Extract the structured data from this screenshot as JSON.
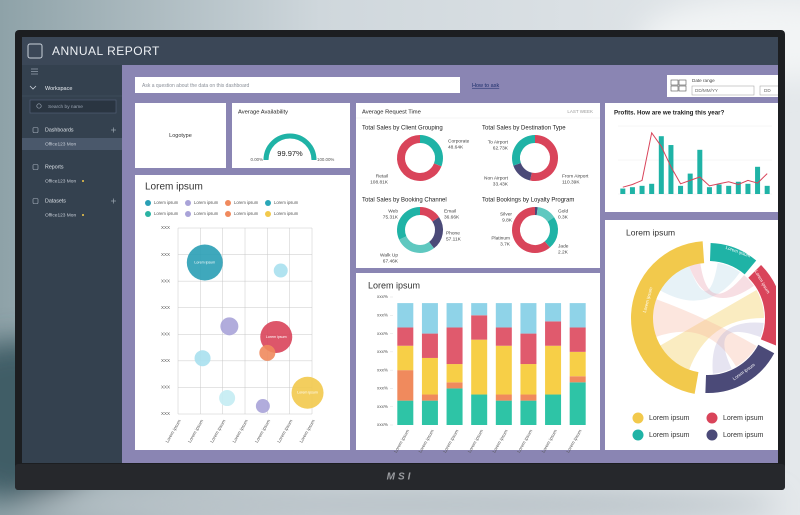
{
  "monitor": {
    "brand": "MSI"
  },
  "window": {
    "title": "ANNUAL REPORT"
  },
  "sidebar": {
    "workspace": "Workspace",
    "search": "Search by name",
    "sections": [
      {
        "label": "Dashboards",
        "items": [
          "Office123 Mon"
        ]
      },
      {
        "label": "Reports",
        "items": [
          "Office123 Mon"
        ]
      },
      {
        "label": "Datasets",
        "items": [
          "Office123 Mon"
        ]
      }
    ]
  },
  "toolbar": {
    "question": "Ask a question about the data on this dashboard",
    "help": "How to ask",
    "date_range": {
      "label": "Date range",
      "from": "DD/MM/YY",
      "to": "DD"
    }
  },
  "logo_card": {
    "label": "Logotype"
  },
  "availability": {
    "title": "Average Availability",
    "value": 99.97,
    "value_label": "99.97%",
    "min": {
      "value": 0,
      "label": "0.00%"
    },
    "max": {
      "value": 100,
      "label": "100.00%"
    },
    "color": "#1fb3a6"
  },
  "request_time": {
    "title": "Average Request Time",
    "period": "LAST WEEK",
    "donuts": [
      {
        "title": "Total Sales by Client Grouping",
        "segments": [
          {
            "name": "Corporate",
            "value": 48640,
            "label": "48.64K",
            "color": "#1fb3a6"
          },
          {
            "name": "Retail",
            "value": 108810,
            "label": "108.81K",
            "color": "#d9445a"
          }
        ]
      },
      {
        "title": "Total Sales by Destination Type",
        "segments": [
          {
            "name": "From Airport",
            "value": 110390,
            "label": "110.39K",
            "color": "#d9445a"
          },
          {
            "name": "Non Airport",
            "value": 33430,
            "label": "33.43K",
            "color": "#4b4a78"
          },
          {
            "name": "To Airport",
            "value": 62730,
            "label": "62.73K",
            "color": "#1fb3a6"
          }
        ]
      },
      {
        "title": "Total Sales by Booking Channel",
        "segments": [
          {
            "name": "Email",
            "value": 36660,
            "label": "36.66K",
            "color": "#d9445a"
          },
          {
            "name": "Phone",
            "value": 57110,
            "label": "57.11K",
            "color": "#4b4a78"
          },
          {
            "name": "Walk Up",
            "value": 67460,
            "label": "67.46K",
            "color": "#5fc8c0"
          },
          {
            "name": "Web",
            "value": 75310,
            "label": "75.31K",
            "color": "#1fb3a6"
          }
        ]
      },
      {
        "title": "Total Bookings by Loyalty Program",
        "segments": [
          {
            "name": "Gold",
            "value": 300,
            "label": "0.3K",
            "color": "#4b4a78"
          },
          {
            "name": "Jade",
            "value": 2200,
            "label": "2.2K",
            "color": "#5fc8c0"
          },
          {
            "name": "Platinum",
            "value": 3700,
            "label": "3.7K",
            "color": "#1fb3a6"
          },
          {
            "name": "Silver",
            "value": 9800,
            "label": "9.8K",
            "color": "#d9445a"
          }
        ]
      }
    ]
  },
  "profits": {
    "title": "Profits. How are we traking this year?",
    "ylim": [
      0,
      100
    ],
    "bar_color": "#1fb3a6",
    "line_color": "#d9445a",
    "bars": [
      8,
      10,
      12,
      15,
      85,
      72,
      12,
      30,
      65,
      10,
      14,
      12,
      18,
      15,
      40,
      12
    ],
    "line": [
      10,
      14,
      20,
      90,
      70,
      40,
      15,
      20,
      25,
      12,
      15,
      18,
      14,
      20,
      16,
      30
    ]
  },
  "bubble_chart": {
    "title": "Lorem ipsum",
    "legend": [
      {
        "name": "Lorem ipsum",
        "color": "#2a9fb5"
      },
      {
        "name": "Lorem ipsum",
        "color": "#a9a3d8"
      },
      {
        "name": "Lorem ipsum",
        "color": "#f08a5d"
      },
      {
        "name": "Lorem ipsum",
        "color": "#2aa7b8"
      },
      {
        "name": "Lorem ipsum",
        "color": "#2bb3a3"
      },
      {
        "name": "Lorem ipsum",
        "color": "#a9a3d8"
      },
      {
        "name": "Lorem ipsum",
        "color": "#f08a5d"
      },
      {
        "name": "Lorem ipsum",
        "color": "#f2c94c"
      }
    ],
    "xlim": [
      0,
      6
    ],
    "ylim": [
      0,
      7
    ],
    "xticks": [
      {
        "value": 0,
        "label": "Lorem ipsum"
      },
      {
        "value": 1,
        "label": "Lorem ipsum"
      },
      {
        "value": 2,
        "label": "Lorem ipsum"
      },
      {
        "value": 3,
        "label": "Lorem ipsum"
      },
      {
        "value": 4,
        "label": "Lorem ipsum"
      },
      {
        "value": 5,
        "label": "Lorem ipsum"
      },
      {
        "value": 6,
        "label": "Lorem ipsum"
      }
    ],
    "yticks": [
      {
        "value": 0,
        "label": "XXX"
      },
      {
        "value": 1,
        "label": "XXX"
      },
      {
        "value": 2,
        "label": "XXX"
      },
      {
        "value": 3,
        "label": "XXX"
      },
      {
        "value": 4,
        "label": "XXX"
      },
      {
        "value": 5,
        "label": "XXX"
      },
      {
        "value": 6,
        "label": "XXX"
      },
      {
        "value": 7,
        "label": "XXX"
      }
    ],
    "points": [
      {
        "x": 1.2,
        "y": 5.7,
        "size": 18,
        "color": "#2a9fb5",
        "label": "Lorem ipsum"
      },
      {
        "x": 4.6,
        "y": 5.4,
        "size": 7,
        "color": "#a8e0ee"
      },
      {
        "x": 2.3,
        "y": 3.3,
        "size": 9,
        "color": "#a9a3d8"
      },
      {
        "x": 4.4,
        "y": 2.9,
        "size": 16,
        "color": "#d9445a",
        "label": "Lorem ipsum"
      },
      {
        "x": 4.0,
        "y": 2.3,
        "size": 8,
        "color": "#f08a5d"
      },
      {
        "x": 1.1,
        "y": 2.1,
        "size": 8,
        "color": "#a8e0ee"
      },
      {
        "x": 2.2,
        "y": 0.6,
        "size": 8,
        "color": "#c4ecf3"
      },
      {
        "x": 3.8,
        "y": 0.3,
        "size": 7,
        "color": "#a9a3d8"
      },
      {
        "x": 5.8,
        "y": 0.8,
        "size": 16,
        "color": "#f2c94c",
        "label": "Lorem ipsum"
      }
    ]
  },
  "stacked_chart": {
    "title": "Lorem ipsum",
    "ylim": [
      0,
      105
    ],
    "yticks": [
      {
        "value": 0,
        "label": "xxx%"
      },
      {
        "value": 15,
        "label": "xxx%"
      },
      {
        "value": 30,
        "label": "xxx%"
      },
      {
        "value": 45,
        "label": "xxx%"
      },
      {
        "value": 60,
        "label": "xxx%"
      },
      {
        "value": 75,
        "label": "xxx%"
      },
      {
        "value": 90,
        "label": "xxx%"
      },
      {
        "value": 105,
        "label": "xxx%"
      }
    ],
    "categories": [
      "Lorem ipsum",
      "Lorem ipsum",
      "Lorem ipsum",
      "Lorem ipsum",
      "Lorem ipsum",
      "Lorem ipsum",
      "Lorem ipsum",
      "Lorem ipsum"
    ],
    "series": [
      {
        "color": "#2ec4a6",
        "values": [
          20,
          20,
          30,
          25,
          20,
          20,
          25,
          35
        ]
      },
      {
        "color": "#f08a5d",
        "values": [
          25,
          5,
          5,
          0,
          5,
          5,
          0,
          5
        ]
      },
      {
        "color": "#f7cf47",
        "values": [
          20,
          30,
          15,
          45,
          40,
          25,
          40,
          20
        ]
      },
      {
        "color": "#e05a6d",
        "values": [
          15,
          20,
          30,
          20,
          15,
          25,
          20,
          20
        ]
      },
      {
        "color": "#8fd3e8",
        "values": [
          20,
          25,
          20,
          10,
          20,
          25,
          15,
          20
        ]
      }
    ]
  },
  "chord_chart": {
    "title": "Lorem ipsum",
    "arc_labels": [
      "Lorem ipsum",
      "Lorem ipsum",
      "Lorem ipsum",
      "Lorem ipsum"
    ],
    "legend": [
      {
        "name": "Lorem ipsum",
        "color": "#f2c94c"
      },
      {
        "name": "Lorem ipsum",
        "color": "#d9445a"
      },
      {
        "name": "Lorem ipsum",
        "color": "#1fb3a6"
      },
      {
        "name": "Lorem ipsum",
        "color": "#4b4a78"
      }
    ]
  }
}
